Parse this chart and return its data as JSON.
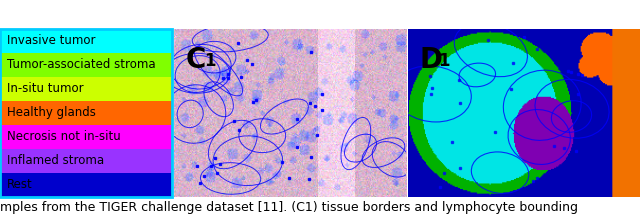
{
  "legend_labels": [
    "Invasive tumor",
    "Tumor-associated stroma",
    "In-situ tumor",
    "Healthy glands",
    "Necrosis not in-situ",
    "Inflamed stroma",
    "Rest"
  ],
  "legend_colors": [
    "#00FFFF",
    "#80FF00",
    "#CCFF00",
    "#FF6600",
    "#FF00FF",
    "#9933FF",
    "#0000CC"
  ],
  "legend_text_color": "black",
  "legend_font_size": 8.5,
  "legend_border_color": "#00CCFF",
  "caption_text": "mples from the TIGER challenge dataset [11]. (C1) tissue borders and lymphocyte bounding",
  "caption_color": "black",
  "caption_font_size": 9,
  "c1_label": "C",
  "c1_subscript": "1",
  "d1_label": "D",
  "d1_subscript": "1",
  "label_font_size": 20,
  "label_color": "black",
  "background_color": "white"
}
